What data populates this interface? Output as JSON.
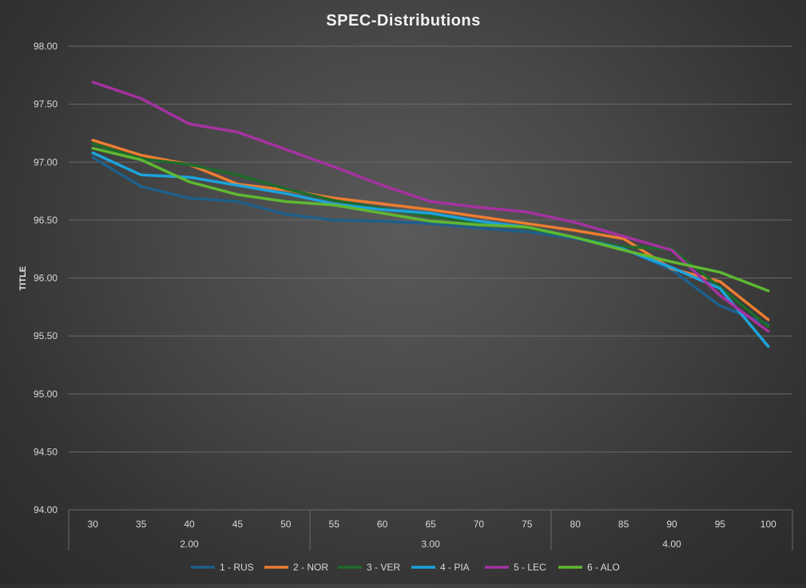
{
  "chart_data": {
    "type": "line",
    "title": "SPEC-Distributions",
    "ylabel": "TITLE",
    "xlabel": "",
    "ylim": [
      94.0,
      98.0
    ],
    "y_ticks": [
      "94.00",
      "94.50",
      "95.00",
      "95.50",
      "96.00",
      "96.50",
      "97.00",
      "97.50",
      "98.00"
    ],
    "y_tick_values": [
      94.0,
      94.5,
      95.0,
      95.5,
      96.0,
      96.5,
      97.0,
      97.5,
      98.0
    ],
    "categories": [
      "30",
      "35",
      "40",
      "45",
      "50",
      "55",
      "60",
      "65",
      "70",
      "75",
      "80",
      "85",
      "90",
      "95",
      "100"
    ],
    "groups": [
      {
        "label": "2.00",
        "count": 5
      },
      {
        "label": "3.00",
        "count": 5
      },
      {
        "label": "4.00",
        "count": 5
      }
    ],
    "grid": true,
    "legend_position": "bottom",
    "series": [
      {
        "name": "1 - RUS",
        "color": "#1f5f8b",
        "values": [
          97.04,
          96.79,
          96.69,
          96.66,
          96.55,
          96.5,
          96.49,
          96.47,
          96.43,
          96.4,
          96.34,
          96.25,
          96.07,
          95.76,
          95.6
        ]
      },
      {
        "name": "2 - NOR",
        "color": "#ed7d31",
        "values": [
          97.19,
          97.06,
          96.98,
          96.81,
          96.76,
          96.69,
          96.64,
          96.59,
          96.53,
          96.47,
          96.41,
          96.34,
          96.08,
          95.97,
          95.64
        ]
      },
      {
        "name": "3 - VER",
        "color": "#1e6b2a",
        "values": [
          97.16,
          97.03,
          96.98,
          96.89,
          96.77,
          96.67,
          96.6,
          96.53,
          96.48,
          96.43,
          96.35,
          96.27,
          96.25,
          95.92,
          95.58
        ]
      },
      {
        "name": "4 - PIA",
        "color": "#1ca3dc",
        "values": [
          97.08,
          96.89,
          96.87,
          96.8,
          96.73,
          96.64,
          96.59,
          96.56,
          96.49,
          96.44,
          96.35,
          96.25,
          96.09,
          95.91,
          95.41
        ]
      },
      {
        "name": "5 - LEC",
        "color": "#a532a1",
        "values": [
          97.69,
          97.55,
          97.33,
          97.26,
          97.11,
          96.96,
          96.8,
          96.66,
          96.61,
          96.57,
          96.48,
          96.36,
          96.24,
          95.85,
          95.54
        ]
      },
      {
        "name": "6 - ALO",
        "color": "#5fb832",
        "values": [
          97.12,
          97.02,
          96.83,
          96.72,
          96.66,
          96.63,
          96.56,
          96.49,
          96.46,
          96.44,
          96.35,
          96.24,
          96.14,
          96.05,
          95.89
        ]
      }
    ]
  }
}
